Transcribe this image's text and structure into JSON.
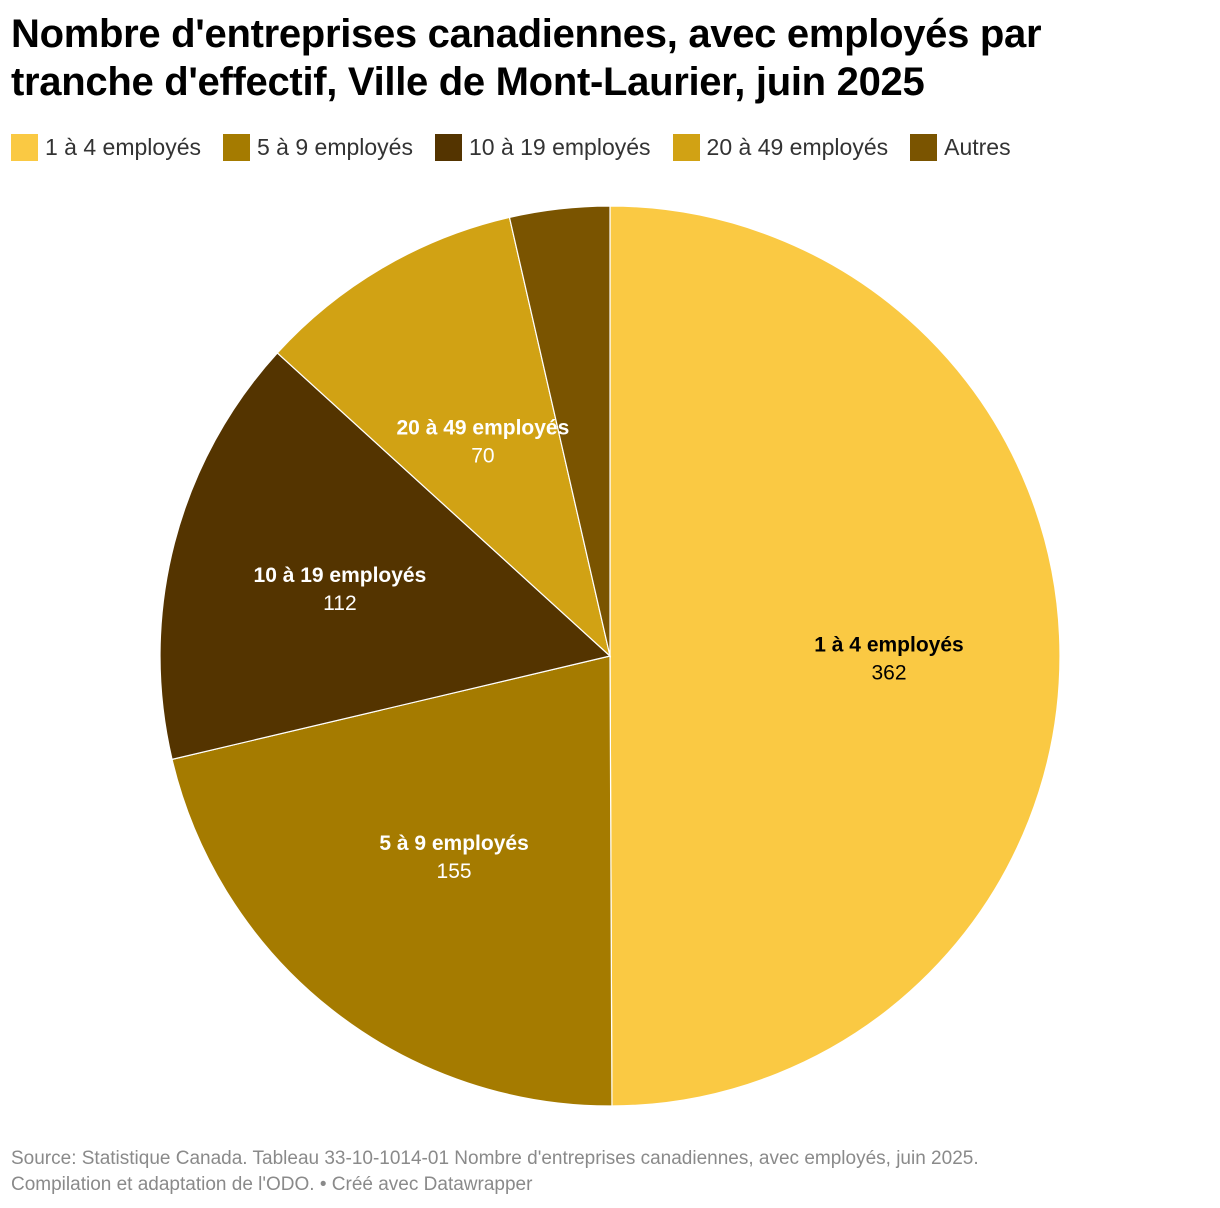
{
  "title": "Nombre d'entreprises canadiennes, avec employés par tranche d'effectif, Ville de Mont-Laurier, juin 2025",
  "chart_data": {
    "type": "pie",
    "title": "Nombre d'entreprises canadiennes, avec employés par tranche d'effectif, Ville de Mont-Laurier, juin 2025",
    "legend_position": "top-left",
    "start_angle": "12 o'clock, clockwise",
    "slices": [
      {
        "label": "1 à 4 employés",
        "value": 362,
        "color": "#fac943",
        "text_color": "#000000",
        "show_label": true
      },
      {
        "label": "5 à 9 employés",
        "value": 155,
        "color": "#a57b00",
        "text_color": "#ffffff",
        "show_label": true
      },
      {
        "label": "10 à 19 employés",
        "value": 112,
        "color": "#543400",
        "text_color": "#ffffff",
        "show_label": true
      },
      {
        "label": "20 à 49 employés",
        "value": 70,
        "color": "#d1a214",
        "text_color": "#ffffff",
        "show_label": true
      },
      {
        "label": "Autres",
        "value": 26,
        "color": "#7a5400",
        "text_color": "#ffffff",
        "show_label": false
      }
    ]
  },
  "footer": {
    "source": "Source: Statistique Canada. Tableau 33-10-1014-01 Nombre d'entreprises canadiennes, avec employés, juin 2025.",
    "credit": "Compilation et adaptation de l'ODO. • Créé avec Datawrapper"
  }
}
